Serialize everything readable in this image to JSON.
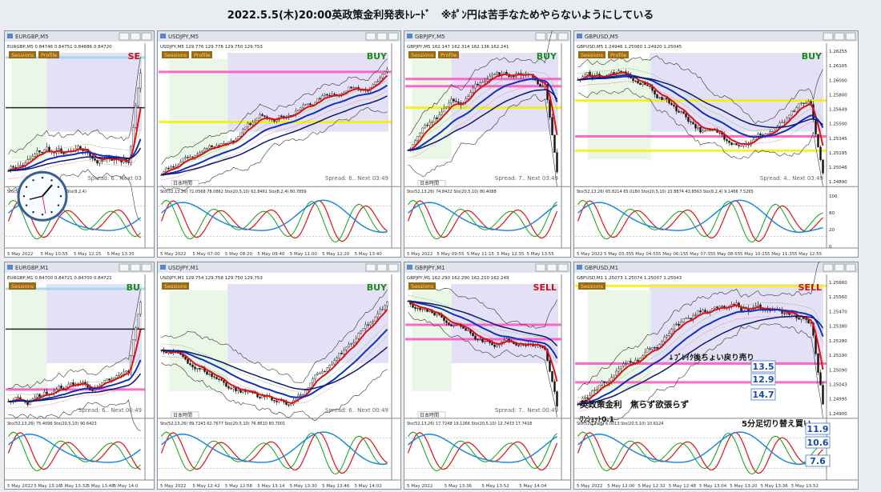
{
  "title": "2022.5.5(木)20:00英政策金利発表ﾄﾚｰﾄﾞ　※ﾎﾟﾝ円は苦手なためやらないようにしている",
  "windows": [
    {
      "title": "EURGBP,M5",
      "info": "EURGBP,M5 0.84746 0.84751 0.84686 0.84720",
      "buttons": [
        "Sessions",
        "Profile"
      ],
      "signal": "SE",
      "spread": "Spread: 6.. Next 03",
      "indicator": "Sto(5,10,5) 71.3192 53.6278 Sto(8,2,4)",
      "times": [
        "5 May 2022",
        "5 May 10:55",
        "5 May 12:15",
        "5 May 13:35"
      ]
    },
    {
      "title": "USDJPY,M5",
      "info": "USDJPY,M5 129.776 129.778 129.750 129.753",
      "buttons": [
        "Sessions",
        "Profile"
      ],
      "signal": "BUY",
      "jst": "日本時間",
      "spread": "Spread: 6.. Next 03:49",
      "indicator": "Sto(52,13,26) 72.0568 78.0862 Sto(20,5,10) 62.8461 Sto(8,2,4) 80.7859",
      "times": [
        "5 May 2022",
        "5 May 07:00",
        "5 May 08:20",
        "5 May 09:40",
        "5 May 11:00",
        "5 May 12:20",
        "5 May 13:40"
      ]
    },
    {
      "title": "GBPJPY,M5",
      "info": "GBPJPY,M5 162.147 162.314 162.136 162.241",
      "buttons": [
        "Sessions",
        "Profile"
      ],
      "signal": "BUY",
      "jst": "日本時間",
      "spread": "Spread: 7.. Next 03:49",
      "indicator": "Sto(52,13,26) 74.8422 Sto(20,5,10) 80.4088",
      "times": [
        "5 May 2022",
        "5 May 09:55",
        "5 May 11:15",
        "5 May 12:35",
        "5 May 13:55"
      ]
    },
    {
      "title": "GBPUSD,M5",
      "info": "GBPUSD,M5 1.24946 1.25060 1.24920 1.25045",
      "buttons": [
        "Sessions",
        "Profile"
      ],
      "signal": "BUY",
      "spread": "Spread: 4.. Next 03:49",
      "indicator": "Sto(52,13,26) 65.8214 65.0180 Sto(20,5,10) 23.8874 43.8563 Sto(8,2,4) 9.1466 7.5265",
      "times": [
        "5 May 2022",
        "5 May 03:35",
        "5 May 04:55",
        "5 May 06:15",
        "5 May 07:35",
        "5 May 08:55",
        "5 May 10:15",
        "5 May 11:35",
        "5 May 12:55"
      ],
      "prices": [
        "1.26255",
        "1.26105",
        "1.26000",
        "1.25800",
        "1.25649",
        "1.25500",
        "1.25345",
        "1.25195",
        "1.25046",
        "1.24890"
      ],
      "ind_levels": [
        "100",
        "80",
        "20",
        "0"
      ]
    },
    {
      "title": "EURGBP,M1",
      "info": "EURGBP,M1 0.84700 0.84721 0.84700 0.84721",
      "buttons": [
        "Sessions"
      ],
      "signal": "BU",
      "spread": "Spread: 6.. Next 00:49",
      "indicator": "Sto(52,13,26) 75.4096 Sto(20,5,10) 90.6423",
      "times": [
        "5 May 2022",
        "5 May 13:16",
        "5 May 13:32",
        "5 May 13:48",
        "5 May 14:0"
      ]
    },
    {
      "title": "USDJPY,M1",
      "info": "USDJPY,M1 129.754 129.758 129.750 129.753",
      "buttons": [
        "Sessions"
      ],
      "signal": "BUY",
      "jst": "日本時間",
      "spread": "Spread: 6.. Next 00:49",
      "indicator": "Sto(52,13,26) 89.7243 62.7677 Sto(20,5,10) 76.8610 80.7001",
      "times": [
        "5 May 2022",
        "5 May 12:42",
        "5 May 12:58",
        "5 May 13:14",
        "5 May 13:30",
        "5 May 13:46",
        "5 May 14:02"
      ]
    },
    {
      "title": "GBPJPY,M1",
      "info": "GBPJPY,M1 162.290 162.290 162.210 162.249",
      "buttons": [
        "Sessions"
      ],
      "signal": "SELL",
      "jst": "日本時間",
      "spread": "Spread: 7.. Next 00:49",
      "indicator": "Sto(52,13,26) 17.7248 19.1266 Sto(20,5,10) 12.7433 17.7418",
      "times": [
        "5 May 2022",
        "5 May 13:36",
        "5 May 13:52",
        "5 May 14:04"
      ]
    },
    {
      "title": "GBPUSD,M1",
      "info": "GBPUSD,M1 1.25073 1.25074 1.25007 1.25043",
      "buttons": [
        "Sessions"
      ],
      "signal": "SELL",
      "indicator": "Sto(52,13,26) 6.0013 Sto(20,5,10) 10.6124",
      "times": [
        "5 May 2022",
        "5 May 12:00",
        "5 May 12:32",
        "5 May 12:48",
        "5 May 13:04",
        "5 May 13:20",
        "5 May 13:36",
        "5 May 13:52"
      ],
      "prices": [
        "1.25660",
        "1.25560",
        "1.25470",
        "1.25380",
        "1.25280",
        "1.25190",
        "1.25090",
        "1.25043",
        "1.24995",
        "1.24900"
      ],
      "annotations": [
        "↓ﾌﾞﾚｲｸ後ちょい戻り売り",
        "英政策金利　焦らず欲張らず",
        "ﾜﾝｼｮｯﾄ0.1",
        "5分足切り替え買い"
      ],
      "boxes": [
        13.5,
        12.9,
        14.7,
        11.9,
        10.6,
        7.6
      ]
    }
  ]
}
